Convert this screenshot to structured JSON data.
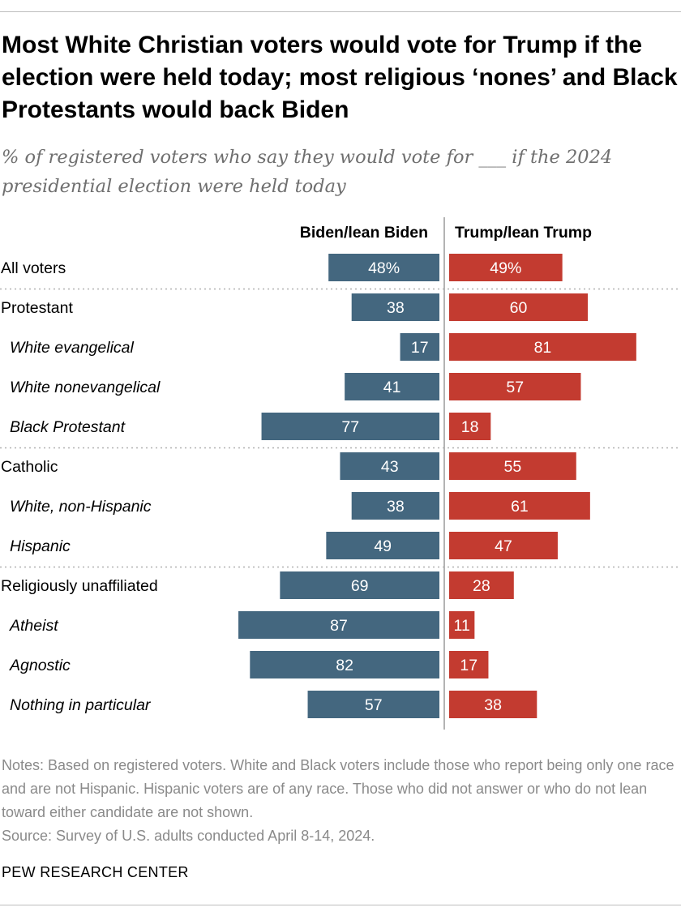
{
  "title": "Most White Christian voters would vote for Trump if the election were held today; most religious ‘nones’ and Black Protestants would back Biden",
  "subtitle": "% of registered voters who say they would vote for ___ if the 2024 presidential election were held today",
  "notes": "Notes: Based on registered voters. White and Black voters include those who report being only one race and are not Hispanic. Hispanic voters are of any race. Those who did not answer or who do not lean toward either candidate are not shown.",
  "source": "Source: Survey of U.S. adults conducted April 8-14, 2024.",
  "brand": "PEW RESEARCH CENTER",
  "colors": {
    "biden": "#44677f",
    "trump": "#c33b30",
    "divider": "#9a9a9a",
    "group_separator": "#b0b0b0"
  },
  "chart_data": {
    "type": "bar",
    "orientation": "horizontal-diverging",
    "series": [
      {
        "name": "Biden/lean Biden",
        "values": [
          48,
          38,
          17,
          41,
          77,
          43,
          38,
          49,
          69,
          87,
          82,
          57
        ],
        "labels": [
          "48%",
          "38",
          "17",
          "41",
          "77",
          "43",
          "38",
          "49",
          "69",
          "87",
          "82",
          "57"
        ]
      },
      {
        "name": "Trump/lean Trump",
        "values": [
          49,
          60,
          81,
          57,
          18,
          55,
          61,
          47,
          28,
          11,
          17,
          38
        ],
        "labels": [
          "49%",
          "60",
          "81",
          "57",
          "18",
          "55",
          "61",
          "47",
          "28",
          "11",
          "17",
          "38"
        ]
      }
    ],
    "categories": [
      "All voters",
      "Protestant",
      "White evangelical",
      "White nonevangelical",
      "Black Protestant",
      "Catholic",
      "White, non-Hispanic",
      "Hispanic",
      "Religiously unaffiliated",
      "Atheist",
      "Agnostic",
      "Nothing in particular"
    ],
    "category_style": [
      "group",
      "group",
      "sub",
      "sub",
      "sub",
      "group",
      "sub",
      "sub",
      "group",
      "sub",
      "sub",
      "sub"
    ],
    "separators_before": [
      "Protestant",
      "Catholic",
      "Religiously unaffiliated"
    ],
    "xlim": [
      0,
      100
    ],
    "grid": false,
    "legend": "top"
  }
}
